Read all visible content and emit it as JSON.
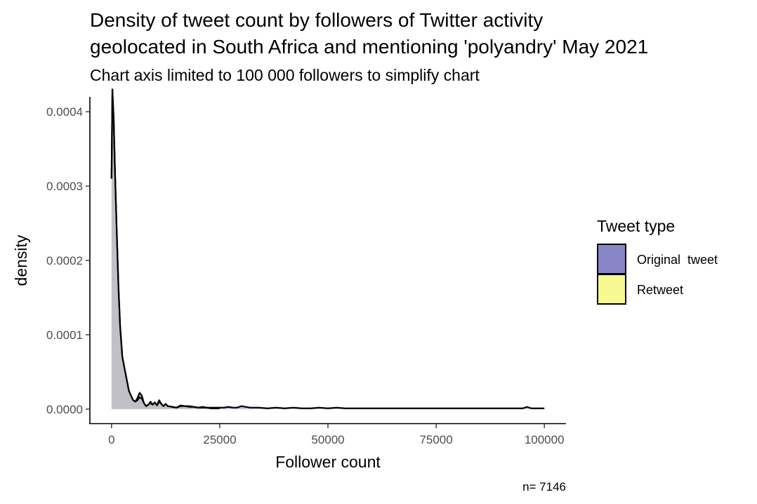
{
  "chart_data": {
    "type": "area",
    "title_lines": [
      "Density of tweet count by followers of Twitter activity",
      "geolocated in South Africa and mentioning 'polyandry' May 2021"
    ],
    "subtitle": "Chart axis limited to 100 000 followers to simplify chart",
    "xlabel": "Follower count",
    "ylabel": "density",
    "xlim": [
      -5000,
      105000
    ],
    "ylim": [
      -2e-05,
      0.00042
    ],
    "x_ticks": [
      0,
      25000,
      50000,
      75000,
      100000
    ],
    "x_tick_labels": [
      "0",
      "25000",
      "50000",
      "75000",
      "100000"
    ],
    "y_ticks": [
      0,
      0.0001,
      0.0002,
      0.0003,
      0.0004
    ],
    "y_tick_labels": [
      "0.0000",
      "0.0001",
      "0.0002",
      "0.0003",
      "0.0004"
    ],
    "legend": {
      "title": "Tweet type",
      "position": "right",
      "entries": [
        {
          "label": "Original  tweet",
          "color": "#8886c6"
        },
        {
          "label": "Retweet",
          "color": "#f6f891"
        }
      ]
    },
    "series": [
      {
        "name": "Original  tweet",
        "color": "#8886c6",
        "x": [
          0,
          200,
          500,
          800,
          1200,
          1600,
          2000,
          2500,
          3000,
          3500,
          4000,
          4500,
          5000,
          5500,
          6000,
          6500,
          7000,
          7500,
          8000,
          8500,
          9000,
          9500,
          10000,
          10500,
          11000,
          11500,
          12000,
          12500,
          13000,
          14000,
          15000,
          16000,
          17000,
          18000,
          19000,
          20000,
          21000,
          22000,
          23000,
          24000,
          25000,
          26000,
          27000,
          28000,
          29000,
          30000,
          32000,
          34000,
          36000,
          38000,
          40000,
          42000,
          44000,
          46000,
          48000,
          50000,
          52000,
          54000,
          56000,
          58000,
          60000,
          65000,
          70000,
          75000,
          80000,
          85000,
          90000,
          95000,
          96000,
          97000,
          100000
        ],
        "values": [
          0.00031,
          0.00043,
          0.00039,
          0.00032,
          0.00024,
          0.000165,
          0.00011,
          7e-05,
          5.5e-05,
          4e-05,
          2.5e-05,
          1.8e-05,
          1.2e-05,
          1e-05,
          1.5e-05,
          2.2e-05,
          1.8e-05,
          8e-06,
          4e-06,
          6e-06,
          1e-05,
          6e-06,
          9e-06,
          5e-06,
          1.2e-05,
          7e-06,
          4e-06,
          7e-06,
          4e-06,
          3e-06,
          2e-06,
          5e-06,
          4e-06,
          4e-06,
          3e-06,
          2e-06,
          3e-06,
          2e-06,
          2e-06,
          2e-06,
          2e-06,
          2e-06,
          3e-06,
          2e-06,
          2e-06,
          4e-06,
          2e-06,
          2e-06,
          1e-06,
          2e-06,
          1e-06,
          2e-06,
          1e-06,
          1e-06,
          2e-06,
          1e-06,
          2e-06,
          1e-06,
          1e-06,
          1e-06,
          1e-06,
          1e-06,
          1e-06,
          1e-06,
          1e-06,
          1e-06,
          1e-06,
          1e-06,
          3e-06,
          1e-06,
          1e-06
        ]
      },
      {
        "name": "Retweet",
        "color": "#f6f891",
        "x": [
          0,
          200,
          500,
          800,
          1200,
          1600,
          2000,
          2500,
          3000,
          3500,
          4000,
          4500,
          5000,
          5500,
          6000,
          6500,
          7000,
          7500,
          8000,
          8500,
          9000,
          9500,
          10000,
          10500,
          11000,
          11500,
          12000,
          12500,
          13000,
          14000,
          15000,
          16000,
          17000,
          18000,
          19000,
          20000,
          21000,
          22000,
          23000,
          24000,
          25000
        ],
        "values": [
          0.00031,
          0.00043,
          0.00039,
          0.00032,
          0.00024,
          0.000165,
          0.00011,
          7e-05,
          5.5e-05,
          4e-05,
          2.5e-05,
          1.8e-05,
          1.2e-05,
          1e-05,
          1.2e-05,
          1.6e-05,
          1.4e-05,
          8e-06,
          4e-06,
          6e-06,
          8e-06,
          6e-06,
          9e-06,
          5e-06,
          1e-05,
          7e-06,
          4e-06,
          7e-06,
          4e-06,
          3e-06,
          2e-06,
          4e-06,
          4e-06,
          3e-06,
          3e-06,
          2e-06,
          2e-06,
          2e-06,
          1e-06,
          1e-06,
          1e-06
        ]
      }
    ],
    "caption": "n= 7146"
  },
  "style": {
    "fill_opacity": 0.5,
    "line_color": "#000000"
  }
}
